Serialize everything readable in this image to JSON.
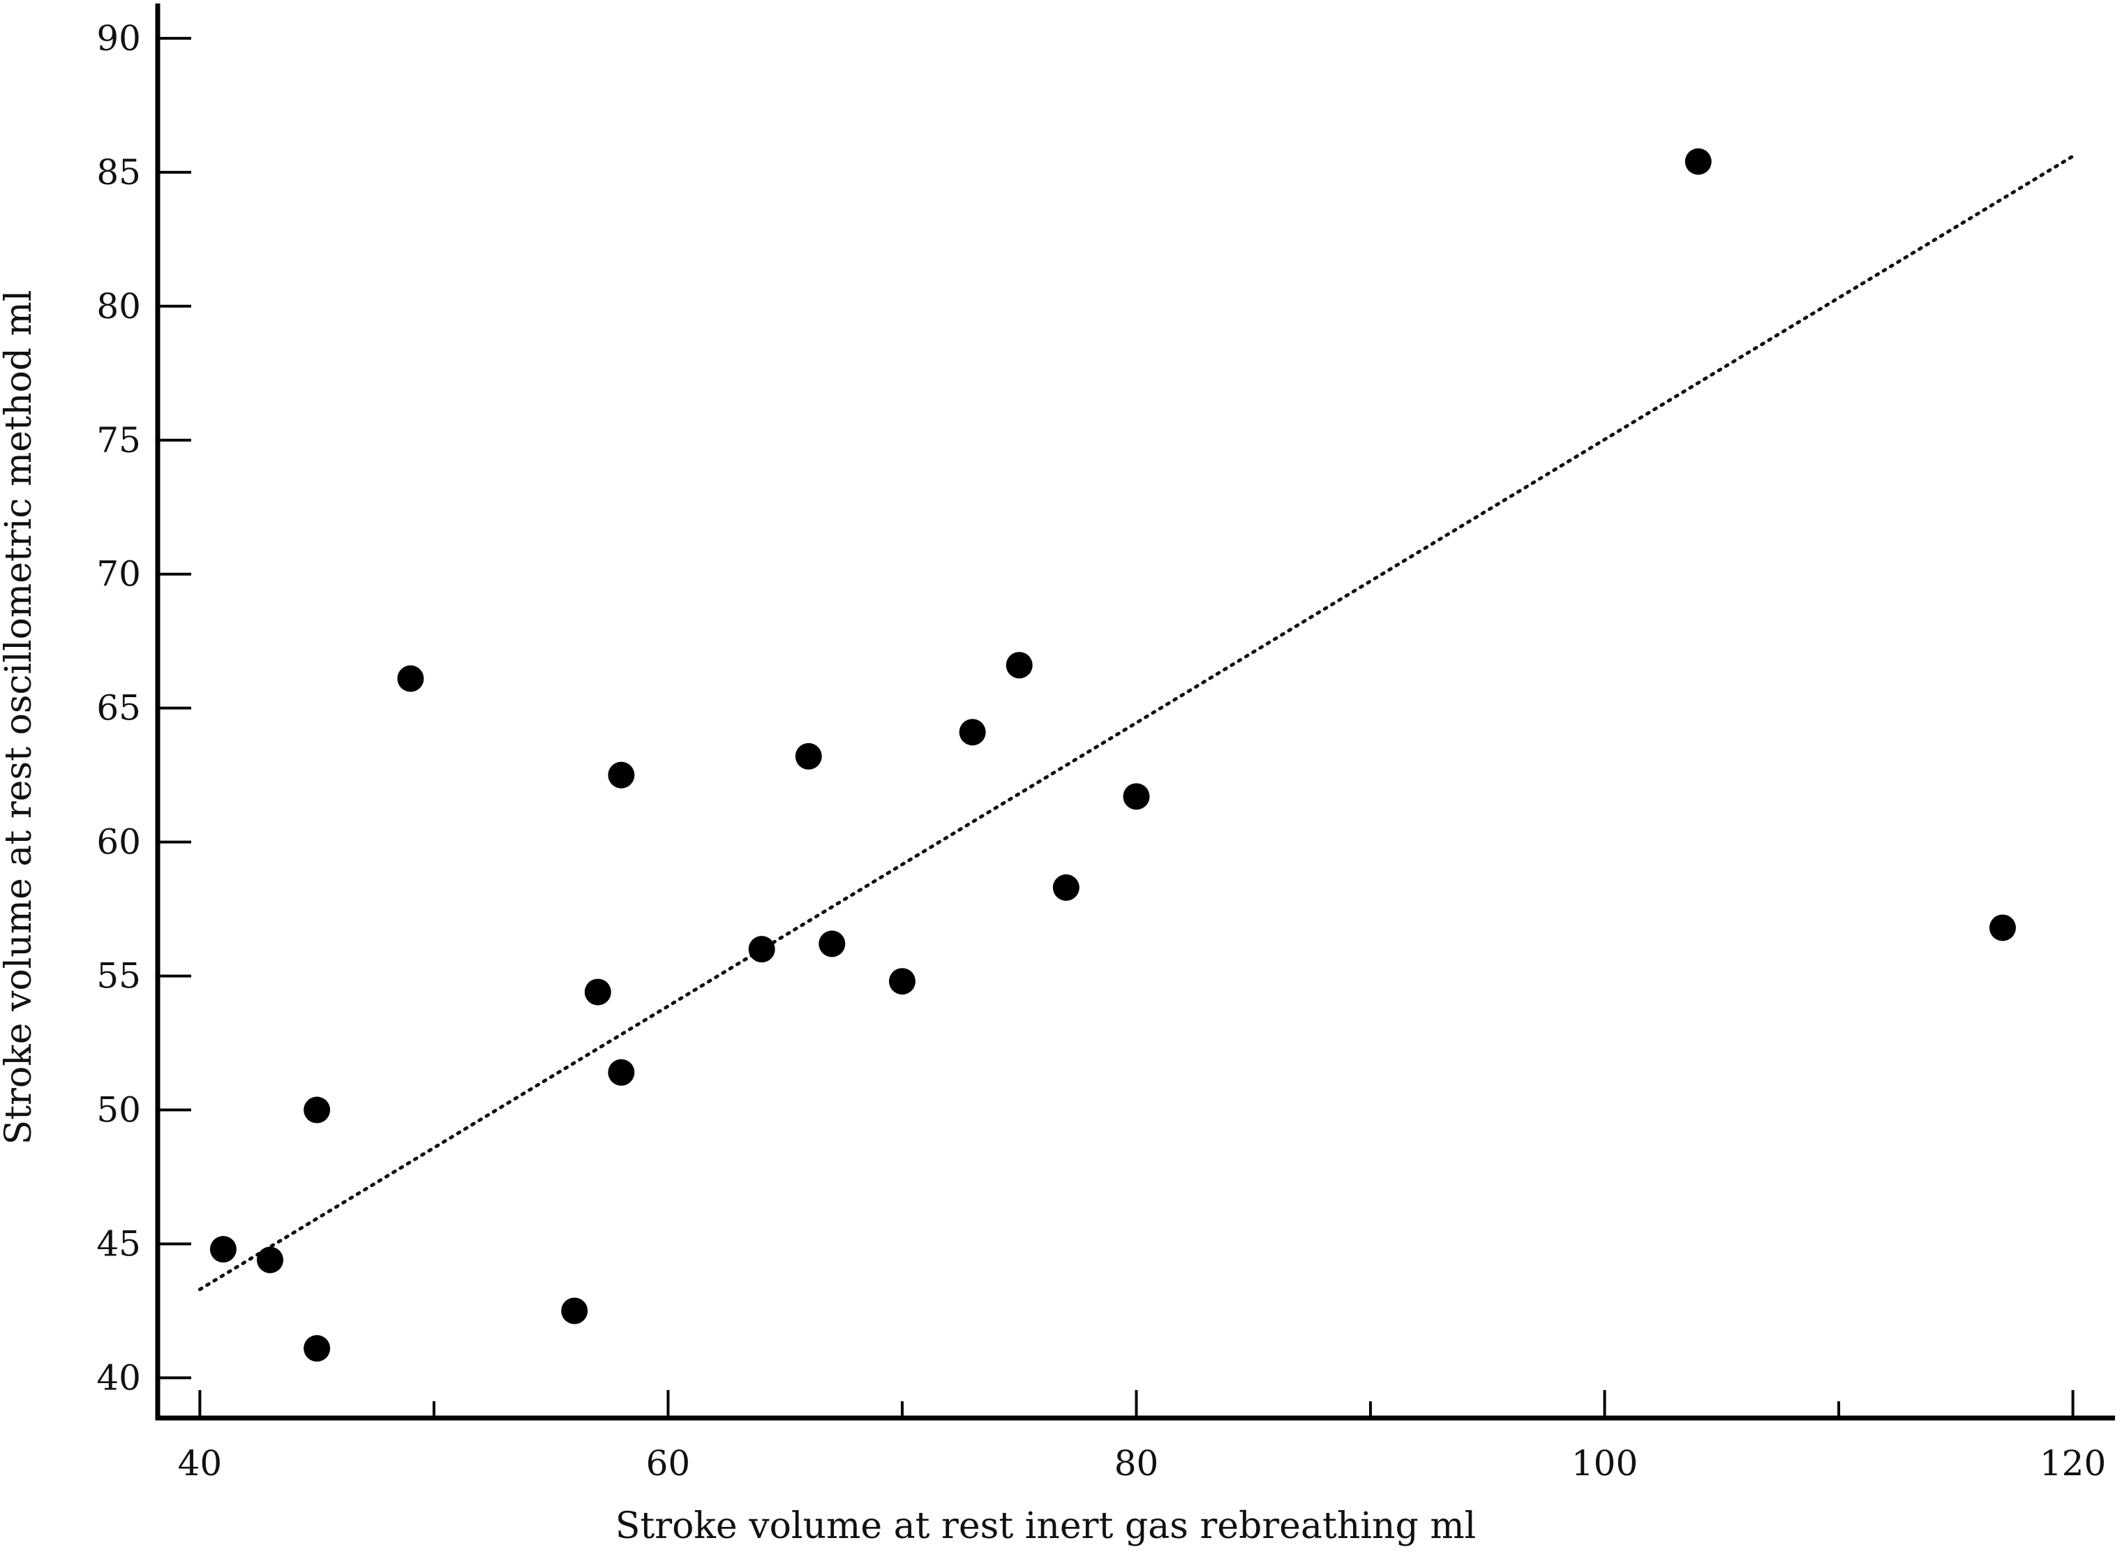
{
  "chart_data": {
    "type": "scatter",
    "title": "",
    "xlabel": "Stroke volume at rest inert gas rebreathing ml",
    "ylabel": "Stroke volume at rest oscillometric method ml",
    "xlim": [
      38.2,
      121.8
    ],
    "ylim": [
      38.5,
      91.3
    ],
    "x_ticks": [
      40,
      60,
      80,
      100,
      120
    ],
    "x_minor_ticks": [
      50,
      70,
      90,
      110
    ],
    "y_ticks": [
      40,
      45,
      50,
      55,
      60,
      65,
      70,
      75,
      80,
      85,
      90
    ],
    "grid": false,
    "legend": "none",
    "series": [
      {
        "points": [
          {
            "x": 41,
            "y": 44.8
          },
          {
            "x": 43,
            "y": 44.4
          },
          {
            "x": 45,
            "y": 50.0
          },
          {
            "x": 45,
            "y": 41.1
          },
          {
            "x": 49,
            "y": 66.1
          },
          {
            "x": 56,
            "y": 42.5
          },
          {
            "x": 57,
            "y": 54.4
          },
          {
            "x": 58,
            "y": 62.5
          },
          {
            "x": 58,
            "y": 51.4
          },
          {
            "x": 64,
            "y": 56.0
          },
          {
            "x": 66,
            "y": 63.2
          },
          {
            "x": 67,
            "y": 56.2
          },
          {
            "x": 70,
            "y": 54.8
          },
          {
            "x": 73,
            "y": 64.1
          },
          {
            "x": 75,
            "y": 66.6
          },
          {
            "x": 77,
            "y": 58.3
          },
          {
            "x": 80,
            "y": 61.7
          },
          {
            "x": 104,
            "y": 85.4
          },
          {
            "x": 117,
            "y": 56.8
          }
        ],
        "color": "#000000"
      }
    ],
    "trendline": {
      "style": "dotted",
      "start": {
        "x": 40,
        "y": 43.3
      },
      "end": {
        "x": 120,
        "y": 85.6
      }
    }
  }
}
